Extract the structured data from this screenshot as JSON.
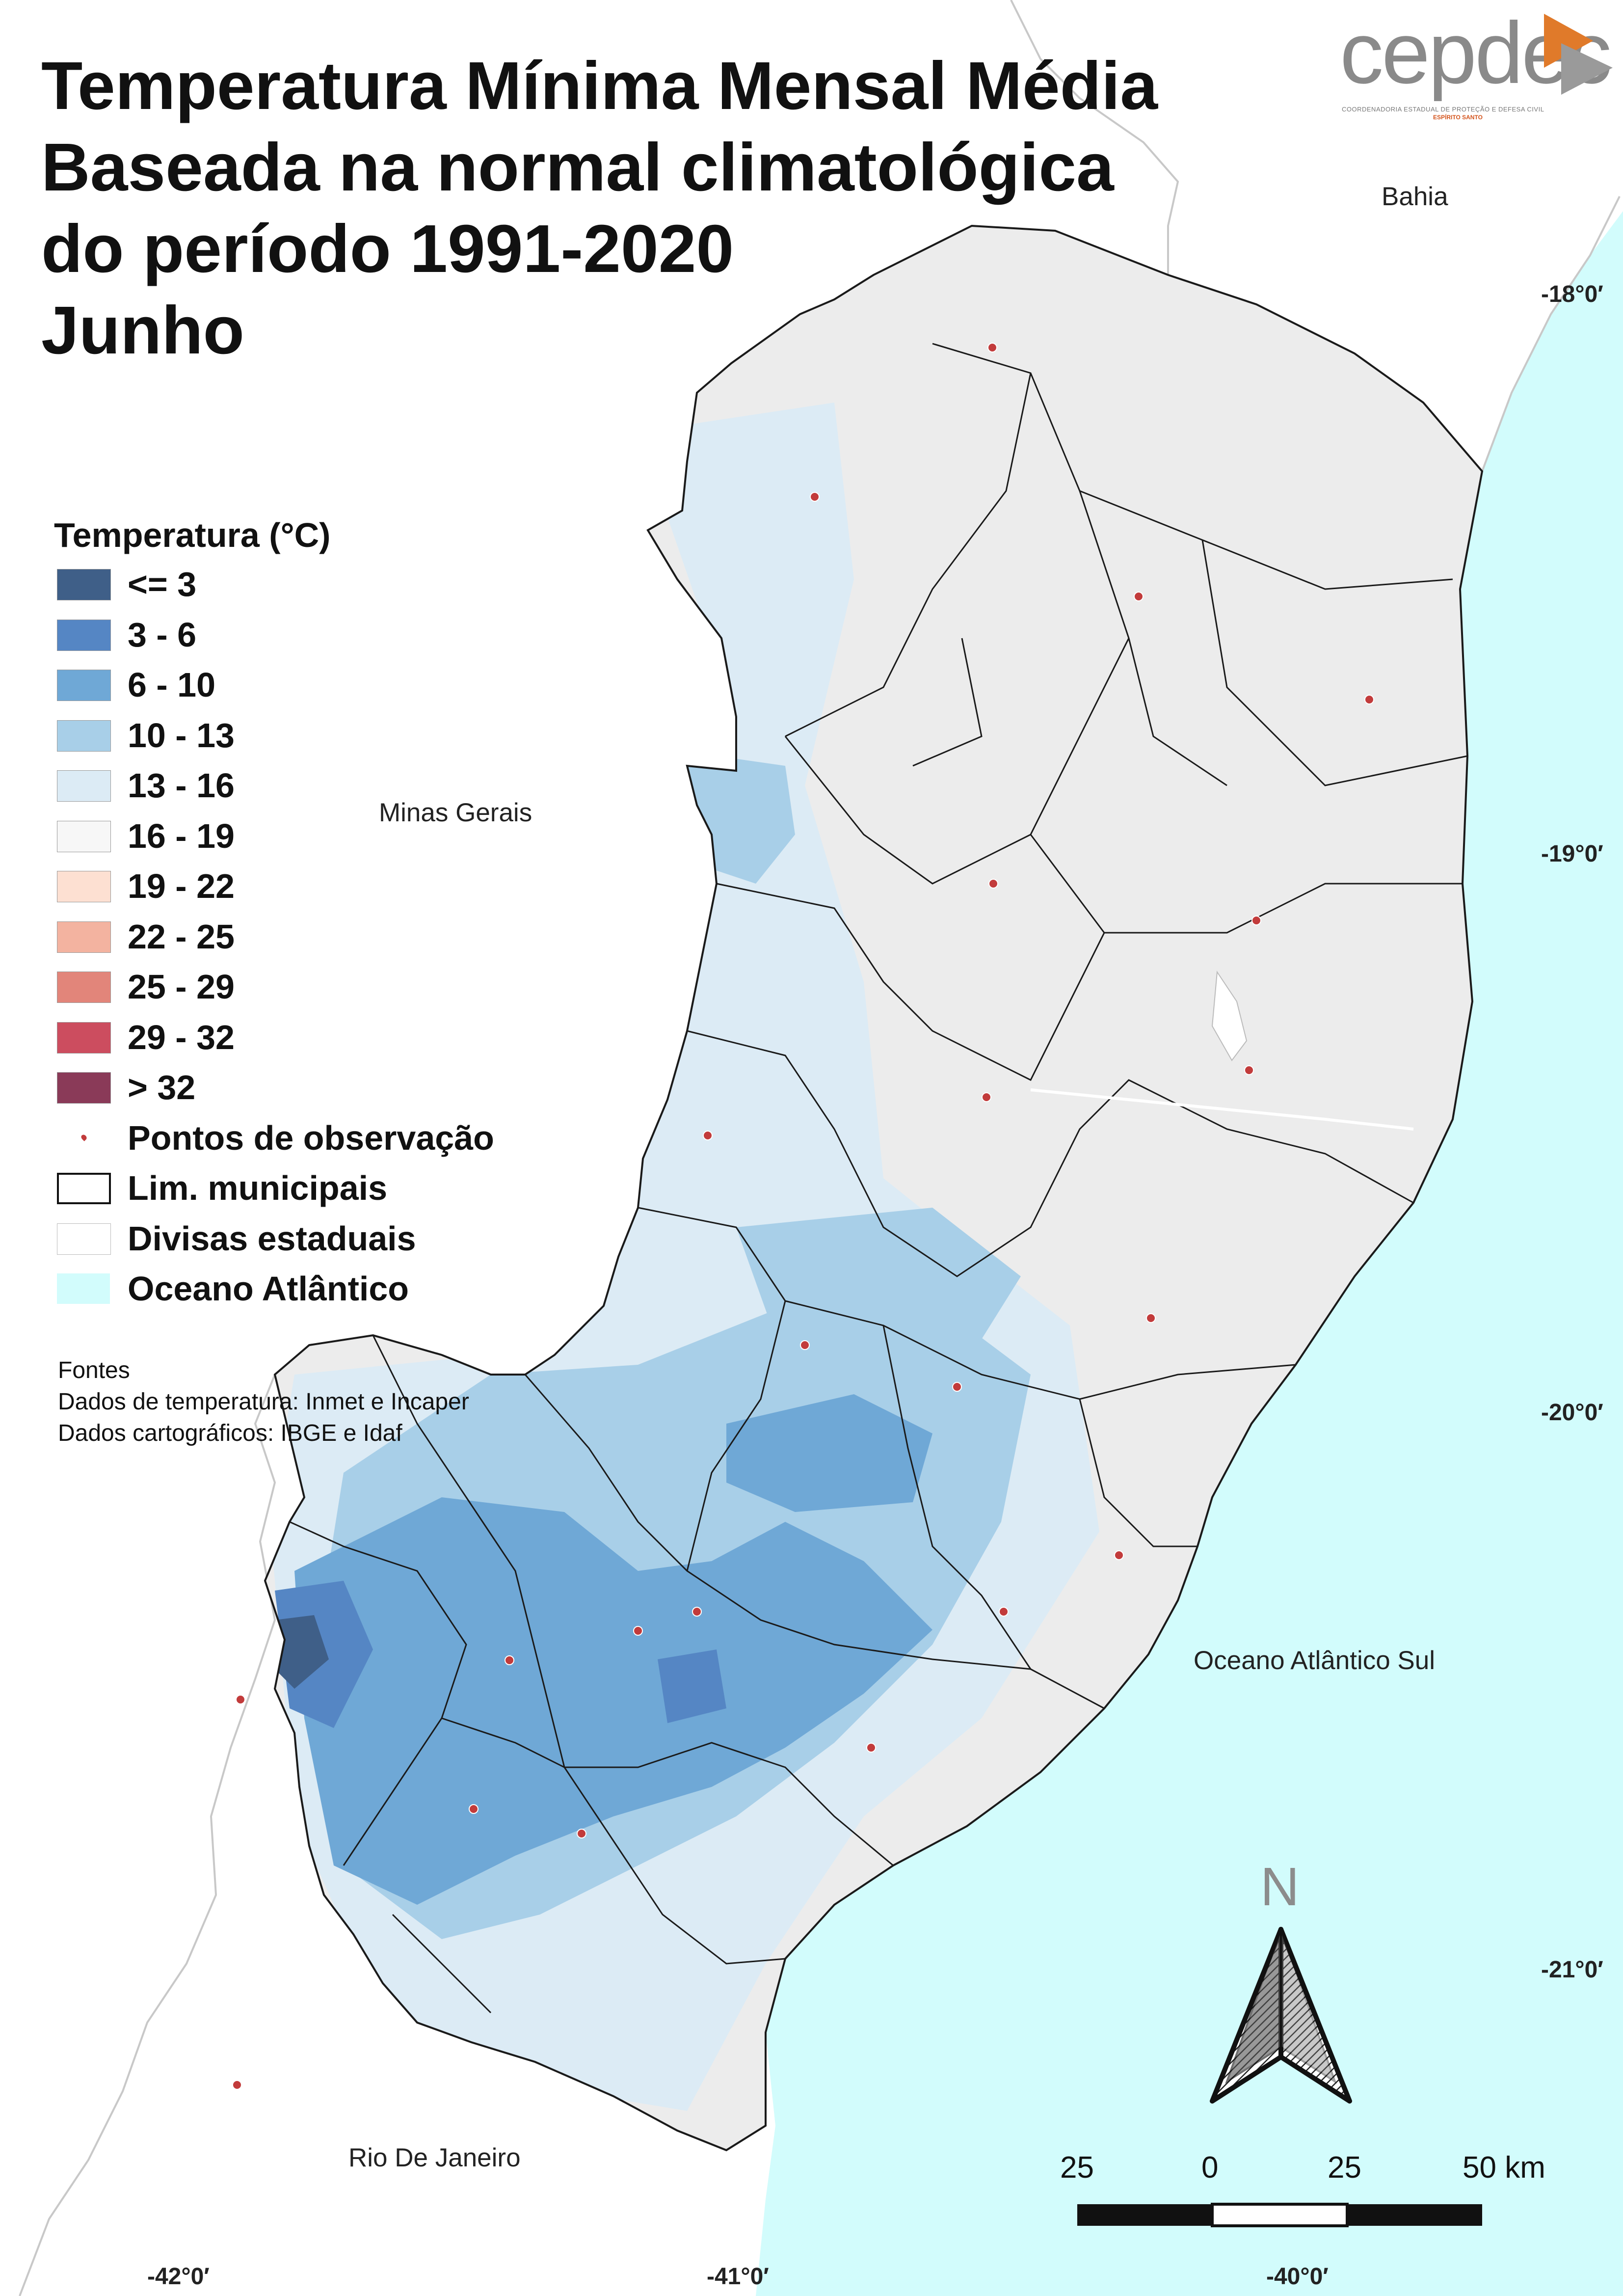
{
  "title": {
    "line1": "Temperatura Mínima Mensal Média",
    "line2": "Baseada na normal climatológica",
    "line3": "do período 1991-2020",
    "line4": "Junho"
  },
  "logo": {
    "text": "cepdec",
    "subtitle": "COORDENADORIA ESTADUAL DE PROTEÇÃO E DEFESA CIVIL",
    "state": "ESPÍRITO SANTO"
  },
  "legend": {
    "title": "Temperatura (°C)",
    "classes": [
      {
        "label": "<= 3",
        "color": "#3f5f88"
      },
      {
        "label": "3 - 6",
        "color": "#5586c4"
      },
      {
        "label": "6 - 10",
        "color": "#6fa8d6"
      },
      {
        "label": "10 - 13",
        "color": "#a8cfe8"
      },
      {
        "label": "13 - 16",
        "color": "#dcebf5"
      },
      {
        "label": "16 - 19",
        "color": "#f7f7f7"
      },
      {
        "label": "19 - 22",
        "color": "#fde0d2"
      },
      {
        "label": "22 - 25",
        "color": "#f3b3a0"
      },
      {
        "label": "25 - 29",
        "color": "#e2857a"
      },
      {
        "label": "29 - 32",
        "color": "#cc4d5f"
      },
      {
        "label": "> 32",
        "color": "#8a3a58"
      }
    ],
    "points_label": "Pontos de observação",
    "municipal_label": "Lim. municipais",
    "state_label": "Divisas estaduais",
    "ocean_label": "Oceano Atlântico",
    "ocean_color": "#d2fcfc"
  },
  "sources": {
    "heading": "Fontes",
    "temperature": "Dados de temperatura: Inmet e Incaper",
    "cartography": "Dados cartográficos: IBGE e Idaf"
  },
  "places": {
    "bahia": "Bahia",
    "minas": "Minas Gerais",
    "rio": "Rio De Janeiro",
    "ocean": "Oceano Atlântico Sul"
  },
  "coordinates": {
    "lat1": "-18°0′",
    "lat2": "-19°0′",
    "lat3": "-20°0′",
    "lat4": "-21°0′",
    "lon1": "-42°0′",
    "lon2": "-41°0′",
    "lon3": "-40°0′"
  },
  "north_label": "N",
  "scale": {
    "labels": [
      "25",
      "0",
      "25",
      "50 km"
    ]
  }
}
